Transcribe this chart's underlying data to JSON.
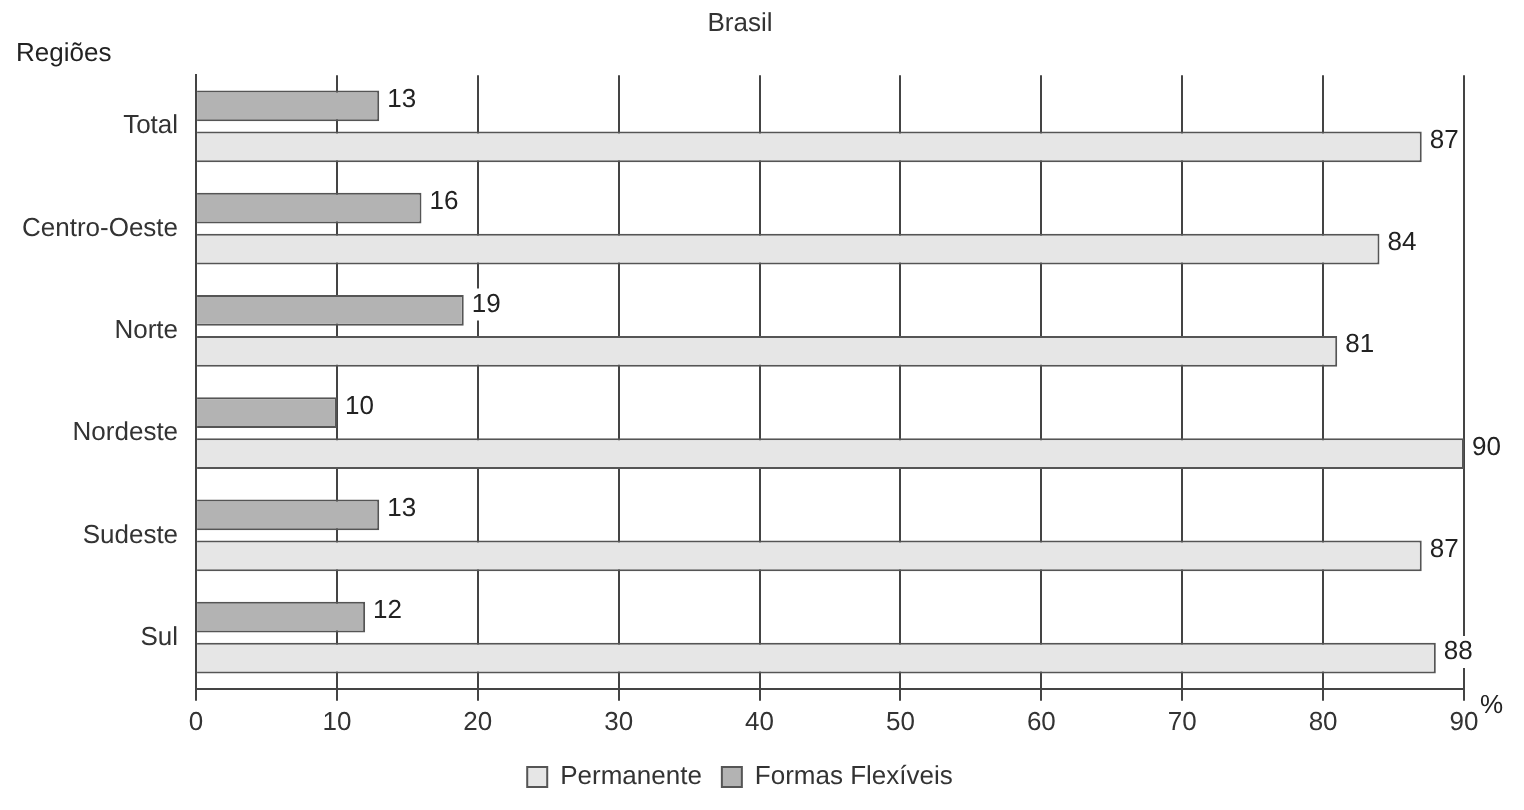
{
  "chart_data": {
    "type": "bar",
    "title": "Brasil",
    "orientation": "horizontal",
    "ylabel": "Regiões",
    "xlabel": "%",
    "categories": [
      "Total",
      "Centro-Oeste",
      "Norte",
      "Nordeste",
      "Sudeste",
      "Sul"
    ],
    "series": [
      {
        "name": "Permanente",
        "color": "#e6e6e6",
        "values": [
          87,
          84,
          81,
          90,
          87,
          88
        ]
      },
      {
        "name": "Formas Flexíveis",
        "color": "#b3b3b3",
        "values": [
          13,
          16,
          19,
          10,
          13,
          12
        ]
      }
    ],
    "xlim": [
      0,
      90
    ],
    "xticks": [
      0,
      10,
      20,
      30,
      40,
      50,
      60,
      70,
      80,
      90
    ],
    "grid": "x",
    "legend": "bottom",
    "data_labels": true
  }
}
